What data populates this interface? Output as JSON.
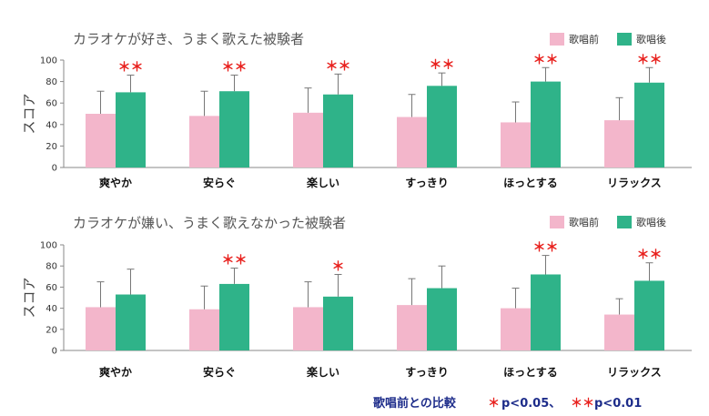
{
  "colors": {
    "before": "#f3b6cb",
    "after": "#2fb389",
    "star": "#e8201d",
    "footnote": "#1d2c8a"
  },
  "chart_data": [
    {
      "type": "bar",
      "title": "カラオケが好き、うまく歌えた被験者",
      "ylabel": "スコア",
      "ylim": [
        0,
        100
      ],
      "yticks": [
        0,
        20,
        40,
        60,
        80,
        100
      ],
      "legend_position": "top-right",
      "categories": [
        "爽やか",
        "安らぐ",
        "楽しい",
        "すっきり",
        "ほっとする",
        "リラックス"
      ],
      "series": [
        {
          "name": "歌唱前",
          "values": [
            50,
            48,
            51,
            47,
            42,
            44
          ],
          "error_upper": [
            71,
            71,
            74,
            68,
            61,
            65
          ]
        },
        {
          "name": "歌唱後",
          "values": [
            70,
            71,
            68,
            76,
            80,
            79
          ],
          "error_upper": [
            86,
            86,
            87,
            88,
            93,
            93
          ]
        }
      ],
      "significance": [
        "**",
        "**",
        "**",
        "**",
        "**",
        "**"
      ]
    },
    {
      "type": "bar",
      "title": "カラオケが嫌い、うまく歌えなかった被験者",
      "ylabel": "スコア",
      "ylim": [
        0,
        100
      ],
      "yticks": [
        0,
        20,
        40,
        60,
        80,
        100
      ],
      "legend_position": "top-right",
      "categories": [
        "爽やか",
        "安らぐ",
        "楽しい",
        "すっきり",
        "ほっとする",
        "リラックス"
      ],
      "series": [
        {
          "name": "歌唱前",
          "values": [
            41,
            39,
            41,
            43,
            40,
            34
          ],
          "error_upper": [
            65,
            61,
            65,
            68,
            59,
            49
          ]
        },
        {
          "name": "歌唱後",
          "values": [
            53,
            63,
            51,
            59,
            72,
            66
          ],
          "error_upper": [
            77,
            78,
            72,
            80,
            90,
            83
          ]
        }
      ],
      "significance": [
        "",
        "**",
        "*",
        "",
        "**",
        "**"
      ]
    }
  ],
  "footnote": {
    "label": "歌唱前との比較",
    "single_star": "＊",
    "single_text": "p<0.05、",
    "double_star": "＊＊",
    "double_text": "p<0.01"
  }
}
